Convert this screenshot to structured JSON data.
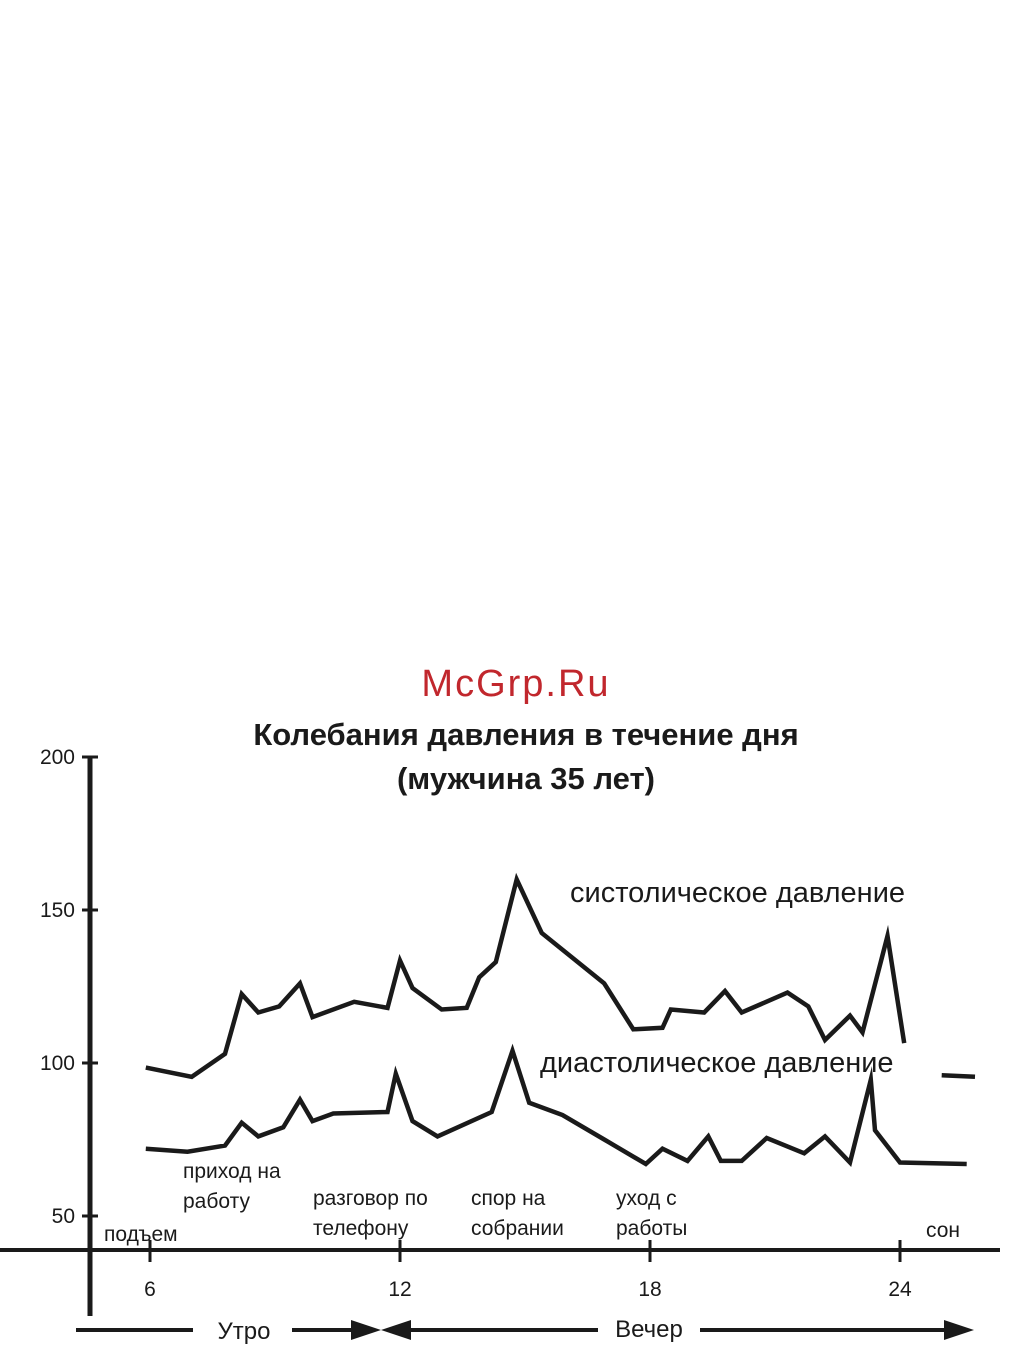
{
  "watermark": {
    "text": "McGrp.Ru",
    "color": "#c1272d"
  },
  "chart_data": {
    "type": "line",
    "title": "Колебания давления в течение дня",
    "subtitle": "(мужчина 35 лет)",
    "xlabel": "",
    "ylabel": "",
    "xlim": [
      4.5,
      25.5
    ],
    "ylim": [
      40,
      200
    ],
    "grid": false,
    "y_ticks": [
      {
        "value": 50,
        "label": "50"
      },
      {
        "value": 100,
        "label": "100"
      },
      {
        "value": 150,
        "label": "150"
      },
      {
        "value": 200,
        "label": "200"
      }
    ],
    "x_ticks": [
      {
        "value": 6,
        "label": "6"
      },
      {
        "value": 12,
        "label": "12"
      },
      {
        "value": 18,
        "label": "18"
      },
      {
        "value": 24,
        "label": "24"
      }
    ],
    "series": [
      {
        "name": "систолическое давление",
        "color": "#1a1a1a",
        "points": [
          [
            5.9,
            98.5
          ],
          [
            7.0,
            95.5
          ],
          [
            7.8,
            103
          ],
          [
            8.2,
            122.5
          ],
          [
            8.6,
            116.5
          ],
          [
            9.1,
            118.5
          ],
          [
            9.6,
            126
          ],
          [
            9.9,
            115
          ],
          [
            10.9,
            120
          ],
          [
            11.7,
            118
          ],
          [
            12.0,
            133.5
          ],
          [
            12.3,
            124.5
          ],
          [
            13.0,
            117.5
          ],
          [
            13.6,
            118
          ],
          [
            13.9,
            128
          ],
          [
            14.3,
            133
          ],
          [
            14.8,
            160
          ],
          [
            15.4,
            142.5
          ],
          [
            16.9,
            126
          ],
          [
            17.6,
            111
          ],
          [
            18.3,
            111.5
          ],
          [
            18.5,
            117.5
          ],
          [
            19.3,
            116.5
          ],
          [
            19.8,
            123.5
          ],
          [
            20.2,
            116.5
          ],
          [
            21.3,
            123
          ],
          [
            21.8,
            118.5
          ],
          [
            22.2,
            107.5
          ],
          [
            22.8,
            115.5
          ],
          [
            23.1,
            110
          ],
          [
            23.7,
            141.5
          ],
          [
            24.1,
            106.5
          ]
        ],
        "tail": [
          [
            25.0,
            96
          ],
          [
            25.8,
            95.5
          ]
        ]
      },
      {
        "name": "диастолическое давление",
        "color": "#1a1a1a",
        "points": [
          [
            5.9,
            72
          ],
          [
            6.9,
            71
          ],
          [
            7.8,
            73
          ],
          [
            8.2,
            80.5
          ],
          [
            8.6,
            76
          ],
          [
            9.2,
            79
          ],
          [
            9.6,
            88
          ],
          [
            9.9,
            81
          ],
          [
            10.4,
            83.5
          ],
          [
            11.7,
            84
          ],
          [
            11.9,
            96.5
          ],
          [
            12.3,
            81
          ],
          [
            12.9,
            76
          ],
          [
            14.2,
            84
          ],
          [
            14.7,
            104
          ],
          [
            15.1,
            87
          ],
          [
            15.9,
            83
          ],
          [
            16.9,
            75
          ],
          [
            17.9,
            67
          ],
          [
            18.3,
            72
          ],
          [
            18.9,
            68
          ],
          [
            19.4,
            76
          ],
          [
            19.7,
            68
          ],
          [
            20.2,
            68
          ],
          [
            20.8,
            75.5
          ],
          [
            21.7,
            70.5
          ],
          [
            22.2,
            76
          ],
          [
            22.8,
            67.5
          ],
          [
            23.3,
            94.5
          ],
          [
            23.4,
            78
          ],
          [
            24.0,
            67.5
          ],
          [
            25.6,
            67
          ]
        ]
      }
    ],
    "annotations": [
      {
        "id": "wake",
        "text": [
          "подъем"
        ]
      },
      {
        "id": "arrive",
        "text": [
          "приход на",
          "работу"
        ]
      },
      {
        "id": "phone",
        "text": [
          "разговор по",
          "телефону"
        ]
      },
      {
        "id": "argue",
        "text": [
          "спор на",
          "собрании"
        ]
      },
      {
        "id": "leave",
        "text": [
          "уход с",
          "работы"
        ]
      },
      {
        "id": "sleep",
        "text": [
          "сон"
        ]
      }
    ],
    "periods": [
      {
        "id": "morning",
        "label": "Утро"
      },
      {
        "id": "evening",
        "label": "Вечер"
      }
    ]
  }
}
